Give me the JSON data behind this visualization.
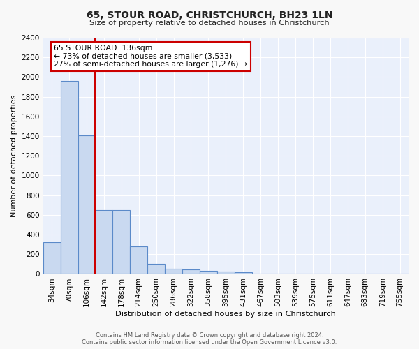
{
  "title1": "65, STOUR ROAD, CHRISTCHURCH, BH23 1LN",
  "title2": "Size of property relative to detached houses in Christchurch",
  "xlabel": "Distribution of detached houses by size in Christchurch",
  "ylabel": "Number of detached properties",
  "bin_labels": [
    "34sqm",
    "70sqm",
    "106sqm",
    "142sqm",
    "178sqm",
    "214sqm",
    "250sqm",
    "286sqm",
    "322sqm",
    "358sqm",
    "395sqm",
    "431sqm",
    "467sqm",
    "503sqm",
    "539sqm",
    "575sqm",
    "611sqm",
    "647sqm",
    "683sqm",
    "719sqm",
    "755sqm"
  ],
  "bar_values": [
    320,
    1960,
    1410,
    650,
    650,
    280,
    100,
    50,
    45,
    35,
    22,
    20,
    0,
    0,
    0,
    0,
    0,
    0,
    0,
    0,
    0
  ],
  "bar_color": "#c9d9f0",
  "bar_edge_color": "#5b8ac9",
  "bar_linewidth": 0.8,
  "vline_bin": 2.5,
  "vline_color": "#cc0000",
  "vline_linewidth": 1.5,
  "annotation_text": "65 STOUR ROAD: 136sqm\n← 73% of detached houses are smaller (3,533)\n27% of semi-detached houses are larger (1,276) →",
  "annotation_box_color": "#ffffff",
  "annotation_box_edge": "#cc0000",
  "ylim": [
    0,
    2400
  ],
  "yticks": [
    0,
    200,
    400,
    600,
    800,
    1000,
    1200,
    1400,
    1600,
    1800,
    2000,
    2200,
    2400
  ],
  "bg_color": "#eaf0fb",
  "grid_color": "#ffffff",
  "fig_facecolor": "#f8f8f8",
  "footer_text": "Contains HM Land Registry data © Crown copyright and database right 2024.\nContains public sector information licensed under the Open Government Licence v3.0."
}
